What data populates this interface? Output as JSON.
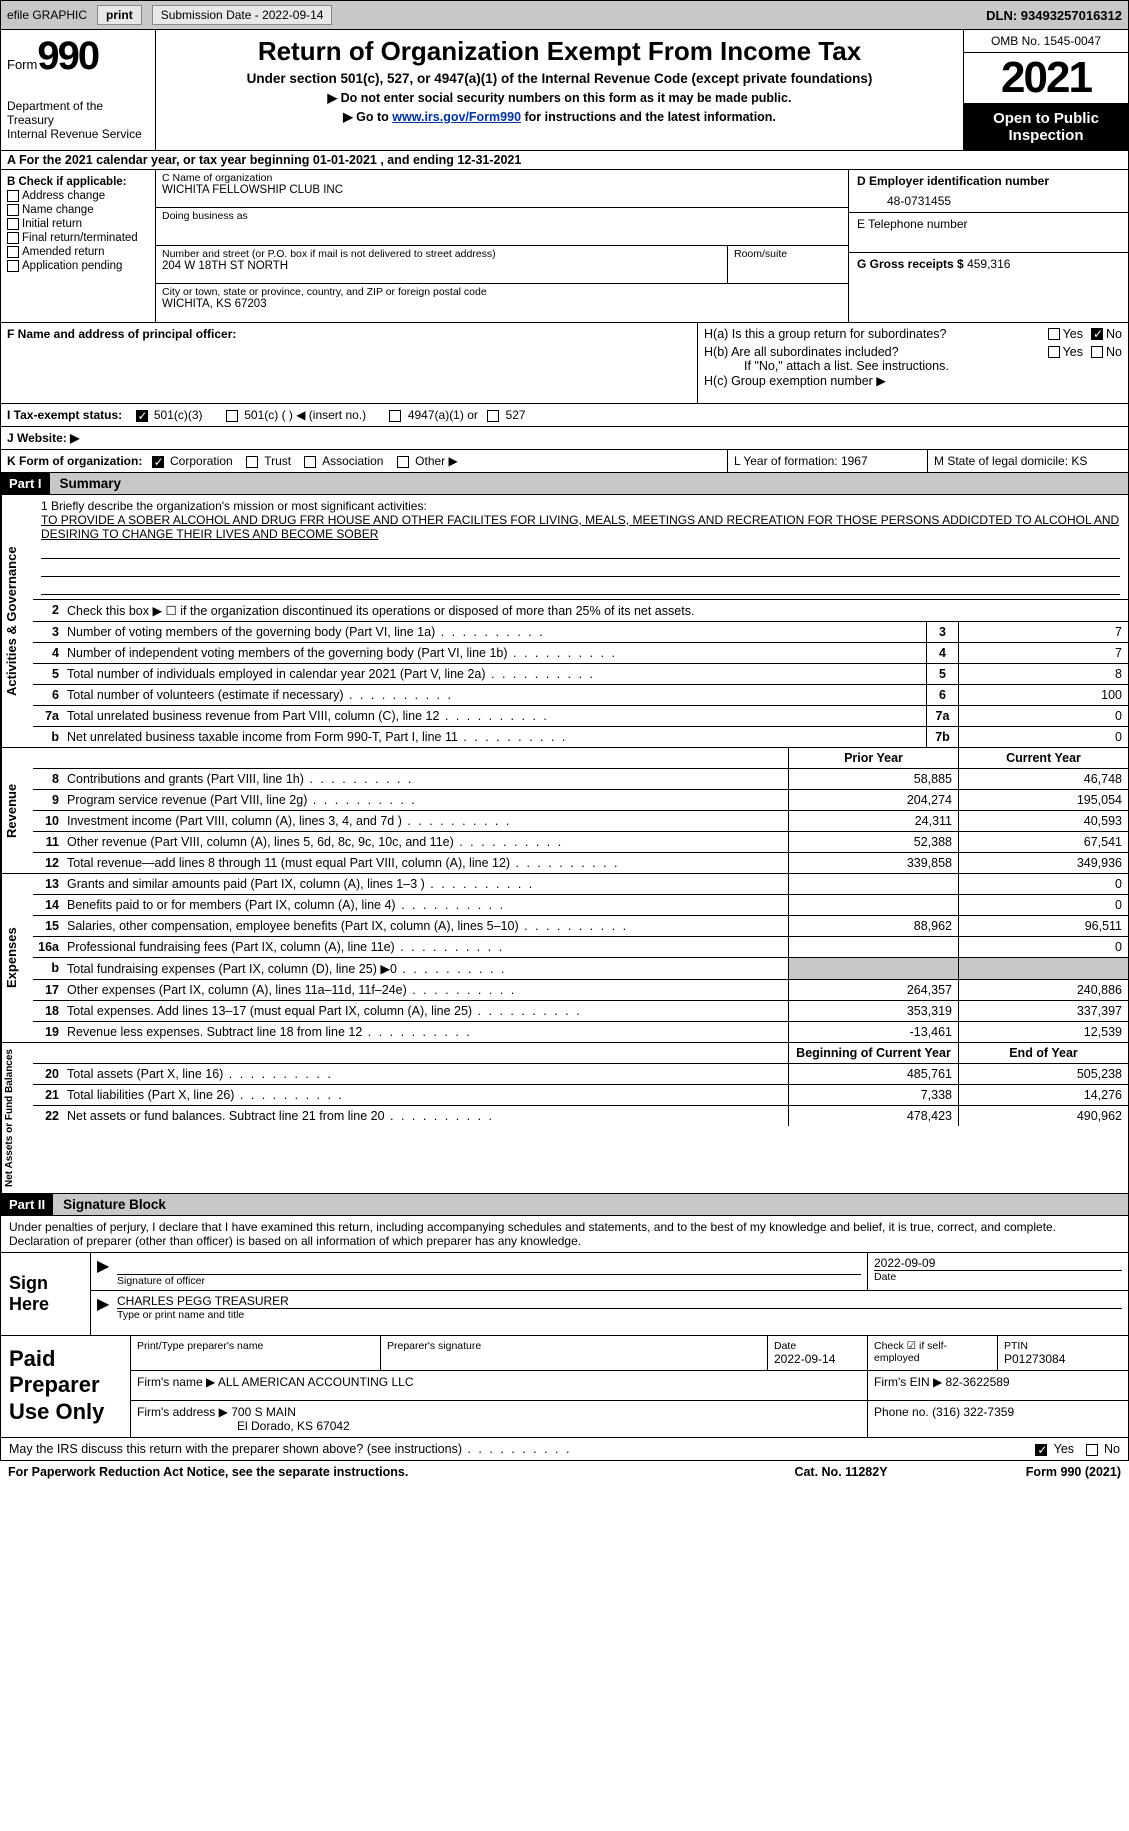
{
  "topbar": {
    "efile": "efile GRAPHIC",
    "print": "print",
    "subdate_label": "Submission Date - 2022-09-14",
    "dln": "DLN: 93493257016312"
  },
  "header": {
    "form_label": "Form",
    "form_num": "990",
    "dept": "Department of the Treasury",
    "irs": "Internal Revenue Service",
    "title": "Return of Organization Exempt From Income Tax",
    "subtitle": "Under section 501(c), 527, or 4947(a)(1) of the Internal Revenue Code (except private foundations)",
    "note1": "▶ Do not enter social security numbers on this form as it may be made public.",
    "note2_pre": "▶ Go to ",
    "note2_link": "www.irs.gov/Form990",
    "note2_post": " for instructions and the latest information.",
    "omb": "OMB No. 1545-0047",
    "year": "2021",
    "pub": "Open to Public Inspection"
  },
  "row_a": "A For the 2021 calendar year, or tax year beginning 01-01-2021    , and ending 12-31-2021",
  "col_b": {
    "title": "B Check if applicable:",
    "items": [
      "Address change",
      "Name change",
      "Initial return",
      "Final return/terminated",
      "Amended return",
      "Application pending"
    ]
  },
  "col_c": {
    "name_label": "C Name of organization",
    "name": "WICHITA FELLOWSHIP CLUB INC",
    "dba_label": "Doing business as",
    "addr_label": "Number and street (or P.O. box if mail is not delivered to street address)",
    "room_label": "Room/suite",
    "addr": "204 W 18TH ST NORTH",
    "city_label": "City or town, state or province, country, and ZIP or foreign postal code",
    "city": "WICHITA, KS  67203"
  },
  "col_d": {
    "ein_label": "D Employer identification number",
    "ein": "48-0731455",
    "tel_label": "E Telephone number",
    "gross_label": "G Gross receipts $",
    "gross": "459,316"
  },
  "row_f": {
    "f_label": "F  Name and address of principal officer:",
    "ha": "H(a)  Is this a group return for subordinates?",
    "hb": "H(b)  Are all subordinates included?",
    "hb_note": "If \"No,\" attach a list. See instructions.",
    "hc": "H(c)  Group exemption number ▶",
    "yes": "Yes",
    "no": "No"
  },
  "row_i": {
    "label": "I  Tax-exempt status:",
    "o1": "501(c)(3)",
    "o2": "501(c) (   ) ◀ (insert no.)",
    "o3": "4947(a)(1) or",
    "o4": "527"
  },
  "row_j": {
    "label": "J  Website: ▶"
  },
  "row_k": {
    "label": "K Form of organization:",
    "o1": "Corporation",
    "o2": "Trust",
    "o3": "Association",
    "o4": "Other ▶",
    "l": "L Year of formation: 1967",
    "m": "M State of legal domicile: KS"
  },
  "parts": {
    "p1": "Part I",
    "p1_title": "Summary",
    "p2": "Part II",
    "p2_title": "Signature Block"
  },
  "mission": {
    "label": "1   Briefly describe the organization's mission or most significant activities:",
    "text": "TO PROVIDE A SOBER ALCOHOL AND DRUG FRR HOUSE AND OTHER FACILITES FOR LIVING, MEALS, MEETINGS AND RECREATION FOR THOSE PERSONS ADDICDTED TO ALCOHOL AND DESIRING TO CHANGE THEIR LIVES AND BECOME SOBER"
  },
  "lines_gov": [
    {
      "n": "2",
      "d": "Check this box ▶ ☐ if the organization discontinued its operations or disposed of more than 25% of its net assets."
    },
    {
      "n": "3",
      "d": "Number of voting members of the governing body (Part VI, line 1a)",
      "bn": "3",
      "bv": "7"
    },
    {
      "n": "4",
      "d": "Number of independent voting members of the governing body (Part VI, line 1b)",
      "bn": "4",
      "bv": "7"
    },
    {
      "n": "5",
      "d": "Total number of individuals employed in calendar year 2021 (Part V, line 2a)",
      "bn": "5",
      "bv": "8"
    },
    {
      "n": "6",
      "d": "Total number of volunteers (estimate if necessary)",
      "bn": "6",
      "bv": "100"
    },
    {
      "n": "7a",
      "d": "Total unrelated business revenue from Part VIII, column (C), line 12",
      "bn": "7a",
      "bv": "0"
    },
    {
      "n": "b",
      "d": "Net unrelated business taxable income from Form 990-T, Part I, line 11",
      "bn": "7b",
      "bv": "0"
    }
  ],
  "col_hdr": {
    "py": "Prior Year",
    "cy": "Current Year"
  },
  "lines_rev": [
    {
      "n": "8",
      "d": "Contributions and grants (Part VIII, line 1h)",
      "py": "58,885",
      "cy": "46,748"
    },
    {
      "n": "9",
      "d": "Program service revenue (Part VIII, line 2g)",
      "py": "204,274",
      "cy": "195,054"
    },
    {
      "n": "10",
      "d": "Investment income (Part VIII, column (A), lines 3, 4, and 7d )",
      "py": "24,311",
      "cy": "40,593"
    },
    {
      "n": "11",
      "d": "Other revenue (Part VIII, column (A), lines 5, 6d, 8c, 9c, 10c, and 11e)",
      "py": "52,388",
      "cy": "67,541"
    },
    {
      "n": "12",
      "d": "Total revenue—add lines 8 through 11 (must equal Part VIII, column (A), line 12)",
      "py": "339,858",
      "cy": "349,936"
    }
  ],
  "lines_exp": [
    {
      "n": "13",
      "d": "Grants and similar amounts paid (Part IX, column (A), lines 1–3 )",
      "py": "",
      "cy": "0"
    },
    {
      "n": "14",
      "d": "Benefits paid to or for members (Part IX, column (A), line 4)",
      "py": "",
      "cy": "0"
    },
    {
      "n": "15",
      "d": "Salaries, other compensation, employee benefits (Part IX, column (A), lines 5–10)",
      "py": "88,962",
      "cy": "96,511"
    },
    {
      "n": "16a",
      "d": "Professional fundraising fees (Part IX, column (A), line 11e)",
      "py": "",
      "cy": "0"
    },
    {
      "n": "b",
      "d": "Total fundraising expenses (Part IX, column (D), line 25) ▶0",
      "shaded": true
    },
    {
      "n": "17",
      "d": "Other expenses (Part IX, column (A), lines 11a–11d, 11f–24e)",
      "py": "264,357",
      "cy": "240,886"
    },
    {
      "n": "18",
      "d": "Total expenses. Add lines 13–17 (must equal Part IX, column (A), line 25)",
      "py": "353,319",
      "cy": "337,397"
    },
    {
      "n": "19",
      "d": "Revenue less expenses. Subtract line 18 from line 12",
      "py": "-13,461",
      "cy": "12,539"
    }
  ],
  "col_hdr2": {
    "py": "Beginning of Current Year",
    "cy": "End of Year"
  },
  "lines_net": [
    {
      "n": "20",
      "d": "Total assets (Part X, line 16)",
      "py": "485,761",
      "cy": "505,238"
    },
    {
      "n": "21",
      "d": "Total liabilities (Part X, line 26)",
      "py": "7,338",
      "cy": "14,276"
    },
    {
      "n": "22",
      "d": "Net assets or fund balances. Subtract line 21 from line 20",
      "py": "478,423",
      "cy": "490,962"
    }
  ],
  "vtabs": {
    "gov": "Activities & Governance",
    "rev": "Revenue",
    "exp": "Expenses",
    "net": "Net Assets or Fund Balances"
  },
  "sig": {
    "text": "Under penalties of perjury, I declare that I have examined this return, including accompanying schedules and statements, and to the best of my knowledge and belief, it is true, correct, and complete. Declaration of preparer (other than officer) is based on all information of which preparer has any knowledge.",
    "here": "Sign Here",
    "sig_officer": "Signature of officer",
    "date": "Date",
    "date_val": "2022-09-09",
    "name": "CHARLES PEGG  TREASURER",
    "name_label": "Type or print name and title"
  },
  "prep": {
    "label": "Paid Preparer Use Only",
    "r1": {
      "a": "Print/Type preparer's name",
      "b": "Preparer's signature",
      "c": "Date",
      "c_val": "2022-09-14",
      "d": "Check ☑ if self-employed",
      "e": "PTIN",
      "e_val": "P01273084"
    },
    "r2": {
      "a": "Firm's name    ▶",
      "a_val": "ALL AMERICAN ACCOUNTING LLC",
      "b": "Firm's EIN ▶",
      "b_val": "82-3622589"
    },
    "r3": {
      "a": "Firm's address ▶",
      "a_val": "700 S MAIN",
      "a_val2": "El Dorado, KS  67042",
      "b": "Phone no.",
      "b_val": "(316) 322-7359"
    }
  },
  "footer": {
    "q": "May the IRS discuss this return with the preparer shown above? (see instructions)",
    "yes": "Yes",
    "no": "No",
    "notice": "For Paperwork Reduction Act Notice, see the separate instructions.",
    "cat": "Cat. No. 11282Y",
    "form": "Form 990 (2021)"
  }
}
